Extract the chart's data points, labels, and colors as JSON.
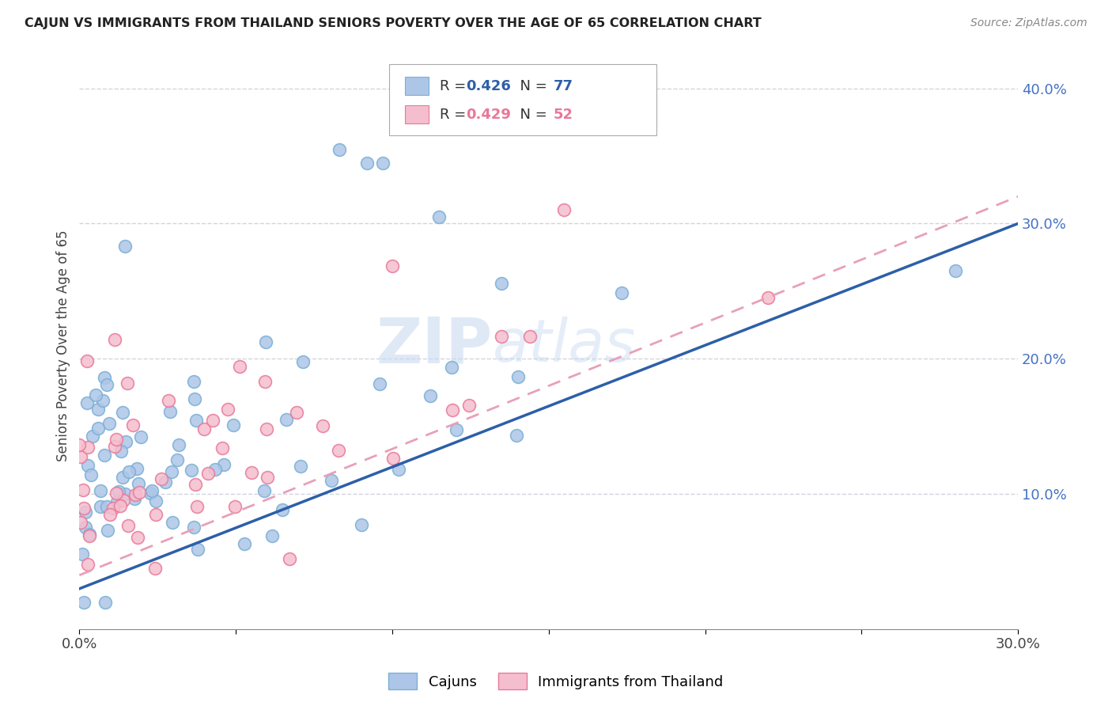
{
  "title": "CAJUN VS IMMIGRANTS FROM THAILAND SENIORS POVERTY OVER THE AGE OF 65 CORRELATION CHART",
  "source": "Source: ZipAtlas.com",
  "ylabel": "Seniors Poverty Over the Age of 65",
  "xmin": 0.0,
  "xmax": 0.3,
  "ymin": 0.0,
  "ymax": 0.42,
  "cajun_R": 0.426,
  "cajun_N": 77,
  "thailand_R": 0.429,
  "thailand_N": 52,
  "cajun_color": "#adc6e8",
  "cajun_edge": "#7aafd4",
  "thailand_color": "#f5bece",
  "thailand_edge": "#e87898",
  "cajun_line_color": "#2d5fa8",
  "thailand_line_color": "#e8a0b8",
  "watermark_zip": "ZIP",
  "watermark_atlas": "atlas",
  "background_color": "#ffffff",
  "grid_color": "#c8c8d8"
}
